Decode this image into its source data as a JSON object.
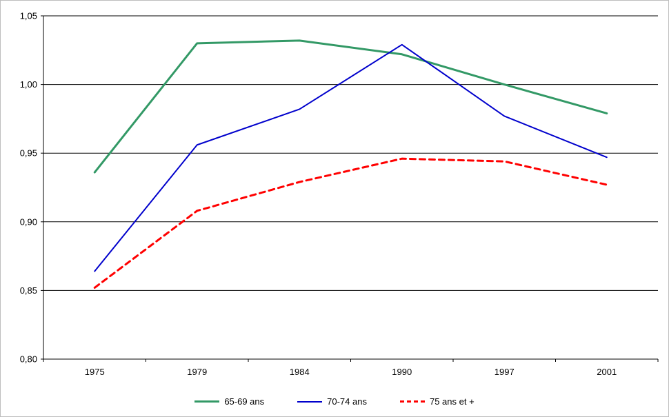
{
  "chart_data": {
    "type": "line",
    "categories": [
      "1975",
      "1979",
      "1984",
      "1990",
      "1997",
      "2001"
    ],
    "series": [
      {
        "name": "65-69 ans",
        "color": "#339966",
        "dash": "solid",
        "width": 3,
        "values": [
          0.936,
          1.03,
          1.032,
          1.022,
          1.0,
          0.979
        ]
      },
      {
        "name": "70-74 ans",
        "color": "#0000CC",
        "dash": "solid",
        "width": 2,
        "values": [
          0.864,
          0.956,
          0.982,
          1.029,
          0.977,
          0.947
        ]
      },
      {
        "name": "75 ans et +",
        "color": "#FF0000",
        "dash": "dashed",
        "width": 3,
        "values": [
          0.852,
          0.908,
          0.929,
          0.946,
          0.944,
          0.927
        ]
      }
    ],
    "title": "",
    "xlabel": "",
    "ylabel": "",
    "ylim": [
      0.8,
      1.05
    ],
    "ytick_step": 0.05,
    "ytick_labels": [
      "0,80",
      "0,85",
      "0,90",
      "0,95",
      "1,00",
      "1,05"
    ],
    "grid": true,
    "gridline_color": "#000000",
    "axis_color": "#000000",
    "legend_position": "bottom"
  }
}
